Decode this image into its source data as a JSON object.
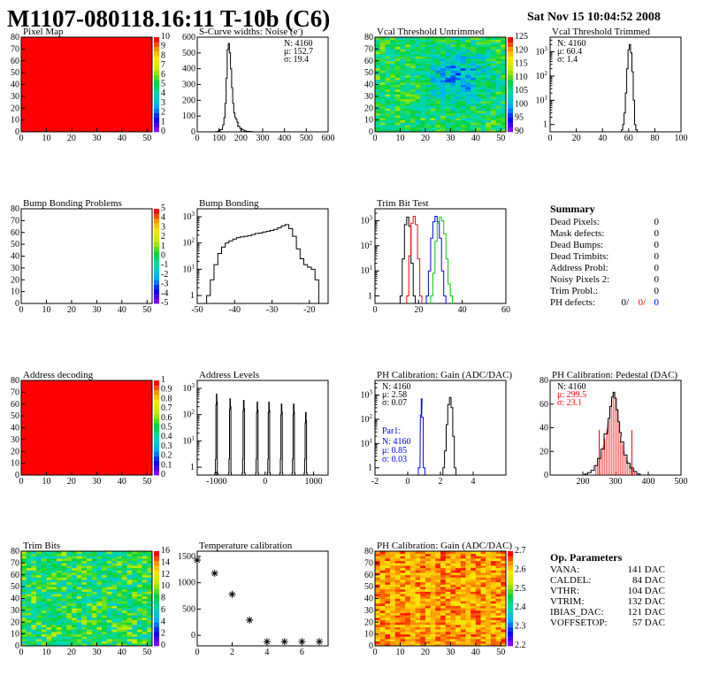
{
  "header": {
    "title": "M1107-080118.16:11 T-10b (C6)",
    "date": "Sat Nov 15 10:04:52 2008"
  },
  "colors": {
    "red": "#ff0000",
    "blue": "#0000ff",
    "green": "#00cc00",
    "black": "#000000"
  },
  "chart_data": [
    {
      "id": "pixel-map",
      "type": "heatmap",
      "title": "Pixel Map",
      "pattern": "uniform-red",
      "xlim": [
        0,
        52
      ],
      "ylim": [
        0,
        80
      ],
      "xticks": [
        "0",
        "10",
        "20",
        "30",
        "40",
        "50"
      ],
      "yticks": [
        "0",
        "10",
        "20",
        "30",
        "40",
        "50",
        "60",
        "70",
        "80"
      ],
      "zticks": [
        "0",
        "1",
        "2",
        "3",
        "4",
        "5",
        "6",
        "7",
        "8",
        "9",
        "10"
      ]
    },
    {
      "id": "noise",
      "type": "line",
      "title": "S-Curve widths: Noise (e",
      "title_sup": "-",
      "title_end": ")",
      "xlim": [
        0,
        600
      ],
      "ylim": [
        0,
        600
      ],
      "xticks": [
        "0",
        "100",
        "200",
        "300",
        "400",
        "500",
        "600"
      ],
      "yticks": [
        "0",
        "100",
        "200",
        "300",
        "400",
        "500",
        "600"
      ],
      "x": [
        80,
        90,
        100,
        110,
        120,
        125,
        130,
        135,
        140,
        145,
        150,
        155,
        160,
        165,
        170,
        175,
        180,
        185,
        190,
        200,
        210,
        220,
        230,
        240,
        250
      ],
      "values": [
        0,
        1,
        4,
        14,
        45,
        90,
        180,
        340,
        520,
        560,
        500,
        400,
        280,
        180,
        120,
        90,
        80,
        60,
        35,
        22,
        12,
        6,
        3,
        2,
        1
      ],
      "stats": [
        "N: 4160",
        "μ: 152.7",
        "σ: 19.4"
      ]
    },
    {
      "id": "vcal-untrimmed",
      "type": "heatmap",
      "title": "Vcal Threshold Untrimmed",
      "pattern": "noise-green-blue",
      "xlim": [
        0,
        52
      ],
      "ylim": [
        0,
        80
      ],
      "xticks": [
        "0",
        "10",
        "20",
        "30",
        "40",
        "50"
      ],
      "yticks": [
        "0",
        "10",
        "20",
        "30",
        "40",
        "50",
        "60",
        "70",
        "80"
      ],
      "zticks": [
        "90",
        "95",
        "100",
        "105",
        "110",
        "115",
        "120",
        "125"
      ]
    },
    {
      "id": "vcal-trimmed",
      "type": "line",
      "title": "Vcal Threshold Trimmed",
      "log_y": true,
      "xlim": [
        0,
        100
      ],
      "ylim": [
        0.5,
        4000
      ],
      "xticks": [
        "0",
        "20",
        "40",
        "60",
        "80",
        "100"
      ],
      "x": [
        55,
        56,
        57,
        58,
        59,
        60,
        61,
        62,
        63,
        64,
        65,
        66
      ],
      "values": [
        0.6,
        1,
        3,
        20,
        200,
        1200,
        2000,
        900,
        150,
        10,
        1,
        0.6
      ],
      "stats": [
        "N: 4160",
        "μ: 60.4",
        "σ:  1.4"
      ]
    },
    {
      "id": "bump-problems",
      "type": "heatmap",
      "title": "Bump Bonding Problems",
      "pattern": "empty",
      "xlim": [
        0,
        52
      ],
      "ylim": [
        0,
        80
      ],
      "xticks": [
        "0",
        "10",
        "20",
        "30",
        "40",
        "50"
      ],
      "yticks": [
        "0",
        "10",
        "20",
        "30",
        "40",
        "50",
        "60",
        "70",
        "80"
      ],
      "zticks": [
        "-5",
        "-4",
        "-3",
        "-2",
        "-1",
        "0",
        "1",
        "2",
        "3",
        "4",
        "5"
      ]
    },
    {
      "id": "bump-bonding",
      "type": "line",
      "title": "Bump Bonding",
      "log_y": true,
      "xlim": [
        -50,
        -15
      ],
      "ylim": [
        0.5,
        2000
      ],
      "xticks": [
        "-50",
        "-40",
        "-30",
        "-20"
      ],
      "x": [
        -47,
        -46,
        -45,
        -44,
        -43,
        -42,
        -41,
        -40,
        -39,
        -38,
        -37,
        -36,
        -35,
        -34,
        -33,
        -32,
        -31,
        -30,
        -29,
        -28,
        -27,
        -26,
        -25,
        -24,
        -23,
        -22,
        -21,
        -20,
        -19,
        -18
      ],
      "values": [
        1,
        4,
        15,
        40,
        70,
        100,
        120,
        140,
        160,
        170,
        180,
        190,
        210,
        230,
        240,
        260,
        280,
        300,
        330,
        380,
        450,
        500,
        350,
        180,
        60,
        25,
        15,
        12,
        10,
        4
      ],
      "stats": []
    },
    {
      "id": "trim-bit-test",
      "type": "line",
      "title": "Trim Bit Test",
      "log_y": true,
      "xlim": [
        0,
        60
      ],
      "ylim": [
        0.5,
        3000
      ],
      "xticks": [
        "0",
        "20",
        "40",
        "60"
      ],
      "series": [
        {
          "color": "#000000",
          "x": [
            12,
            13,
            14,
            15,
            16,
            17,
            18
          ],
          "values": [
            1,
            30,
            700,
            1400,
            600,
            20,
            1
          ]
        },
        {
          "color": "#ff0000",
          "x": [
            15,
            16,
            17,
            18,
            19,
            20,
            21
          ],
          "values": [
            1,
            40,
            800,
            1500,
            700,
            30,
            1
          ]
        },
        {
          "color": "#0000ff",
          "x": [
            24,
            25,
            26,
            27,
            28,
            29,
            30,
            31,
            32
          ],
          "values": [
            1,
            10,
            200,
            900,
            1500,
            900,
            200,
            10,
            1
          ]
        },
        {
          "color": "#00cc00",
          "x": [
            26,
            27,
            28,
            29,
            30,
            31,
            32,
            33,
            34,
            35
          ],
          "values": [
            1,
            8,
            150,
            800,
            1400,
            1000,
            300,
            30,
            3,
            1
          ]
        }
      ],
      "stats": []
    },
    {
      "id": "address-decoding",
      "type": "heatmap",
      "title": "Address decoding",
      "pattern": "uniform-red",
      "xlim": [
        0,
        52
      ],
      "ylim": [
        0,
        80
      ],
      "xticks": [
        "0",
        "10",
        "20",
        "30",
        "40",
        "50"
      ],
      "yticks": [
        "0",
        "10",
        "20",
        "30",
        "40",
        "50",
        "60",
        "70",
        "80"
      ],
      "zticks": [
        "0",
        "0.1",
        "0.2",
        "0.3",
        "0.4",
        "0.5",
        "0.6",
        "0.7",
        "0.8",
        "0.9",
        "1"
      ]
    },
    {
      "id": "address-levels",
      "type": "bar",
      "title": "Address Levels",
      "log_y": true,
      "xlim": [
        -1400,
        1300
      ],
      "ylim": [
        0.5,
        2000
      ],
      "xticks": [
        "-1000",
        "0",
        "1000"
      ],
      "peaks": [
        {
          "x": -1000,
          "height": 600
        },
        {
          "x": -720,
          "height": 400
        },
        {
          "x": -440,
          "height": 350
        },
        {
          "x": -160,
          "height": 300
        },
        {
          "x": 80,
          "height": 300
        },
        {
          "x": 340,
          "height": 250
        },
        {
          "x": 590,
          "height": 250
        },
        {
          "x": 840,
          "height": 120
        }
      ],
      "stats": []
    },
    {
      "id": "ph-gain",
      "type": "line",
      "title": "PH Calibration: Gain (ADC/DAC)",
      "log_y": true,
      "xlim": [
        -2,
        6
      ],
      "ylim": [
        0.5,
        4000
      ],
      "xticks": [
        "-2",
        "0",
        "2",
        "4"
      ],
      "series": [
        {
          "color": "#000000",
          "x": [
            2.2,
            2.3,
            2.4,
            2.5,
            2.6,
            2.7,
            2.8,
            2.9
          ],
          "values": [
            1,
            5,
            60,
            400,
            800,
            300,
            20,
            1
          ]
        },
        {
          "color": "#0000ff",
          "x": [
            0.7,
            0.8,
            0.85,
            0.9,
            1.0
          ],
          "values": [
            1,
            150,
            700,
            120,
            1
          ]
        }
      ],
      "stats": [
        "N: 4160",
        "μ: 2.58",
        "σ: 0.07"
      ],
      "stats2_title": "Par1:",
      "stats2": [
        "N: 4160",
        "μ: 0.85",
        "σ: 0.03"
      ]
    },
    {
      "id": "ph-pedestal",
      "type": "line",
      "title": "PH Calibration: Pedestal (DAC)",
      "xlim": [
        100,
        500
      ],
      "ylim": [
        0,
        80
      ],
      "xticks": [
        "200",
        "300",
        "400",
        "500"
      ],
      "yticks": [
        "0",
        "20",
        "40",
        "60",
        "80"
      ],
      "x": [
        210,
        220,
        230,
        240,
        250,
        260,
        270,
        280,
        285,
        290,
        295,
        300,
        305,
        310,
        315,
        320,
        330,
        340,
        350,
        360,
        370,
        380
      ],
      "values": [
        1,
        2,
        4,
        8,
        14,
        22,
        35,
        48,
        58,
        66,
        70,
        65,
        55,
        45,
        36,
        28,
        17,
        10,
        6,
        3,
        1,
        0
      ],
      "stats": [
        "N: 4160",
        "μ: 299.5",
        "σ: 23.1"
      ]
    },
    {
      "id": "trim-bits",
      "type": "heatmap",
      "title": "Trim Bits",
      "pattern": "noise-green-yellow",
      "xlim": [
        0,
        52
      ],
      "ylim": [
        0,
        80
      ],
      "xticks": [
        "0",
        "10",
        "20",
        "30",
        "40",
        "50"
      ],
      "yticks": [
        "0",
        "10",
        "20",
        "30",
        "40",
        "50",
        "60",
        "70",
        "80"
      ],
      "zticks": [
        "0",
        "2",
        "4",
        "6",
        "8",
        "10",
        "12",
        "14",
        "16"
      ]
    },
    {
      "id": "temperature",
      "type": "scatter",
      "title": "Temperature calibration",
      "xlim": [
        0,
        7.5
      ],
      "ylim": [
        -200,
        1600
      ],
      "xticks": [
        "0",
        "2",
        "4",
        "6"
      ],
      "yticks": [
        "0",
        "500",
        "1000",
        "1500"
      ],
      "x": [
        0,
        1,
        2,
        3,
        4,
        5,
        6,
        7
      ],
      "values": [
        1430,
        1180,
        780,
        290,
        -120,
        -120,
        -120,
        -120
      ]
    },
    {
      "id": "ph-gain-map",
      "type": "heatmap",
      "title": "PH Calibration: Gain (ADC/DAC)",
      "pattern": "columns-red-yellow",
      "xlim": [
        0,
        52
      ],
      "ylim": [
        0,
        80
      ],
      "xticks": [
        "0",
        "10",
        "20",
        "30",
        "40",
        "50"
      ],
      "yticks": [
        "0",
        "10",
        "20",
        "30",
        "40",
        "50",
        "60",
        "70",
        "80"
      ],
      "zticks": [
        "2.2",
        "2.3",
        "2.4",
        "2.5",
        "2.6",
        "2.7"
      ]
    }
  ],
  "summary": {
    "title": "Summary",
    "rows": [
      {
        "label": "Dead Pixels:",
        "value": "0"
      },
      {
        "label": "Mask defects:",
        "value": "0"
      },
      {
        "label": "Dead Bumps:",
        "value": "0"
      },
      {
        "label": "Dead Trimbits:",
        "value": "0"
      },
      {
        "label": "Address Probl:",
        "value": "0"
      },
      {
        "label": "Noisy Pixels 2:",
        "value": "0"
      },
      {
        "label": "Trim Probl.:",
        "value": "0"
      }
    ],
    "ph_label": "PH defects:",
    "ph_values": [
      "0/",
      "0/",
      "0"
    ]
  },
  "params": {
    "title": "Op. Parameters",
    "rows": [
      {
        "label": "VANA:",
        "value": "141 DAC"
      },
      {
        "label": "CALDEL:",
        "value": "84 DAC"
      },
      {
        "label": "VTHR:",
        "value": "104 DAC"
      },
      {
        "label": "VTRIM:",
        "value": "132 DAC"
      },
      {
        "label": "IBIAS_DAC:",
        "value": "121 DAC"
      },
      {
        "label": "VOFFSETOP:",
        "value": "57 DAC"
      }
    ]
  }
}
